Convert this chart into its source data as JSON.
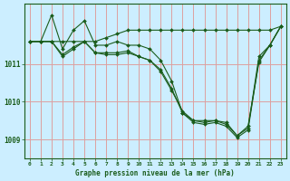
{
  "xlabel": "Graphe pression niveau de la mer (hPa)",
  "background_color": "#cceeff",
  "grid_color": "#dda0a0",
  "line_color": "#1a5c1a",
  "text_color": "#1a5c1a",
  "xlim": [
    -0.5,
    23.5
  ],
  "ylim": [
    1008.5,
    1012.6
  ],
  "yticks": [
    1009,
    1010,
    1011
  ],
  "xticks": [
    0,
    1,
    2,
    3,
    4,
    5,
    6,
    7,
    8,
    9,
    10,
    11,
    12,
    13,
    14,
    15,
    16,
    17,
    18,
    19,
    20,
    21,
    22,
    23
  ],
  "series": [
    {
      "x": [
        0,
        1,
        2,
        3,
        4,
        5,
        6,
        7,
        8,
        9,
        10,
        11,
        12,
        13,
        14,
        15,
        16,
        17,
        18,
        19,
        20,
        21,
        22,
        23
      ],
      "y": [
        1011.6,
        1011.6,
        1011.6,
        1011.6,
        1011.6,
        1011.6,
        1011.6,
        1011.7,
        1011.8,
        1011.9,
        1011.9,
        1011.9,
        1011.9,
        1011.9,
        1011.9,
        1011.9,
        1011.9,
        1011.9,
        1011.9,
        1011.9,
        1011.9,
        1011.9,
        1011.9,
        1012.0
      ]
    },
    {
      "x": [
        0,
        1,
        2,
        3,
        4,
        5,
        6,
        7,
        8,
        9,
        10,
        11,
        12,
        13,
        14,
        15,
        16,
        17,
        18,
        19,
        20,
        21,
        22,
        23
      ],
      "y": [
        1011.6,
        1011.6,
        1012.3,
        1011.4,
        1011.9,
        1012.15,
        1011.5,
        1011.5,
        1011.6,
        1011.5,
        1011.5,
        1011.4,
        1011.1,
        1010.55,
        1009.7,
        1009.5,
        1009.5,
        1009.5,
        1009.45,
        1009.1,
        1009.35,
        1011.05,
        1011.5,
        1012.0
      ]
    },
    {
      "x": [
        0,
        1,
        2,
        3,
        4,
        5,
        6,
        7,
        8,
        9,
        10,
        11,
        12,
        13,
        14,
        15,
        16,
        17,
        18,
        19,
        20,
        21,
        22,
        23
      ],
      "y": [
        1011.6,
        1011.6,
        1011.6,
        1011.2,
        1011.4,
        1011.6,
        1011.3,
        1011.3,
        1011.3,
        1011.35,
        1011.2,
        1011.1,
        1010.8,
        1010.3,
        1009.75,
        1009.5,
        1009.45,
        1009.5,
        1009.4,
        1009.1,
        1009.3,
        1011.2,
        1011.5,
        1012.0
      ]
    },
    {
      "x": [
        0,
        1,
        2,
        3,
        4,
        5,
        6,
        7,
        8,
        9,
        10,
        11,
        12,
        13,
        14,
        15,
        16,
        17,
        18,
        19,
        20,
        21,
        22,
        23
      ],
      "y": [
        1011.6,
        1011.6,
        1011.6,
        1011.25,
        1011.45,
        1011.6,
        1011.3,
        1011.25,
        1011.25,
        1011.3,
        1011.2,
        1011.1,
        1010.85,
        1010.35,
        1009.7,
        1009.45,
        1009.4,
        1009.45,
        1009.35,
        1009.05,
        1009.25,
        1011.1,
        1011.5,
        1012.0
      ]
    }
  ]
}
